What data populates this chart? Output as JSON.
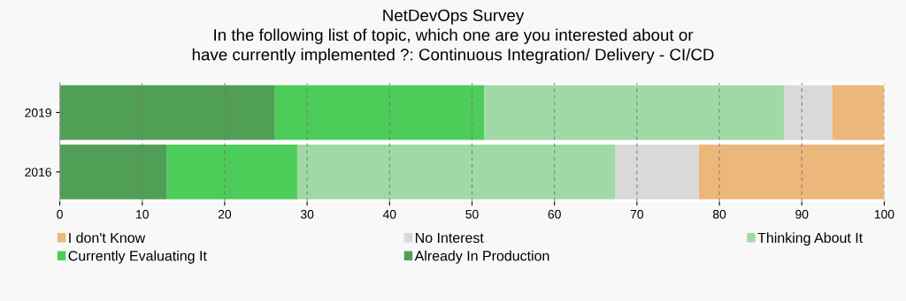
{
  "chart_data": {
    "type": "bar",
    "orientation": "horizontal",
    "stacked": true,
    "title": "NetDevOps Survey\nIn the following list of topic, which one are you interested about or\nhave currently implemented ?: Continuous Integration/ Delivery - CI/CD",
    "categories": [
      "2019",
      "2016"
    ],
    "series": [
      {
        "name": "Already In Production",
        "color": "#519e56",
        "values": [
          26.1,
          13.0
        ]
      },
      {
        "name": "Currently Evaluating It",
        "color": "#4ccd5a",
        "values": [
          25.4,
          15.8
        ]
      },
      {
        "name": "Thinking About It",
        "color": "#a0d9a5",
        "values": [
          36.4,
          38.6
        ]
      },
      {
        "name": "No Interest",
        "color": "#d9d9d9",
        "values": [
          5.8,
          10.1
        ]
      },
      {
        "name": "I don't Know",
        "color": "#ebb77b",
        "values": [
          6.3,
          22.5
        ]
      }
    ],
    "xlim": [
      0,
      100
    ],
    "xticks": [
      0,
      10,
      20,
      30,
      40,
      50,
      60,
      70,
      80,
      90,
      100
    ],
    "grid": "x",
    "legend": "bottom"
  }
}
